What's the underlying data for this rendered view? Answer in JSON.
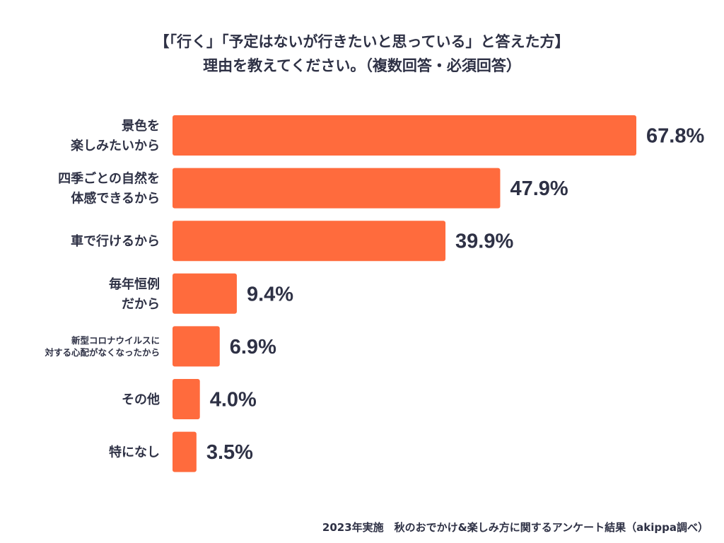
{
  "title": {
    "line1": "【「行く」「予定はないが行きたいと思っている」と答えた方】",
    "line2": "理由を教えてください。（複数回答・必須回答）"
  },
  "footer": "2023年実施　秋のおでかけ&楽しみ方に関するアンケート結果（akippa調べ）",
  "colors": {
    "bar": "#ff6b3d",
    "text": "#2e3145"
  },
  "chart_data": {
    "type": "bar",
    "orientation": "horizontal",
    "categories": [
      [
        "景色を",
        "楽しみたいから"
      ],
      [
        "四季ごとの自然を",
        "体感できるから"
      ],
      [
        "車で行けるから"
      ],
      [
        "毎年恒例",
        "だから"
      ],
      [
        "新型コロナウイルスに",
        "対する心配がなくなったから"
      ],
      [
        "その他"
      ],
      [
        "特になし"
      ]
    ],
    "values": [
      67.8,
      47.9,
      39.9,
      9.4,
      6.9,
      4.0,
      3.5
    ],
    "value_labels": [
      "67.8%",
      "47.9%",
      "39.9%",
      "9.4%",
      "6.9%",
      "4.0%",
      "3.5%"
    ],
    "unit": "%",
    "xlim": [
      0,
      67.8
    ],
    "grid": false,
    "legend": "none"
  }
}
